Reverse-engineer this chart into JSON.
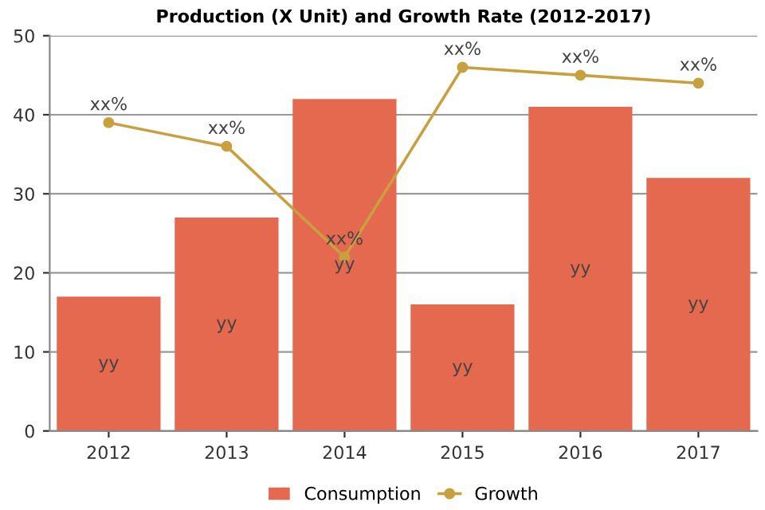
{
  "chart_data": {
    "type": "bar",
    "title": "Production (X Unit) and Growth Rate (2012-2017)",
    "categories": [
      "2012",
      "2013",
      "2014",
      "2015",
      "2016",
      "2017"
    ],
    "series": [
      {
        "name": "Consumption",
        "color": "#e5694f",
        "values": [
          17,
          27,
          42,
          16,
          41,
          32
        ],
        "value_labels": [
          "yy",
          "yy",
          "yy",
          "yy",
          "yy",
          "yy"
        ]
      },
      {
        "name": "Growth",
        "type": "line",
        "color": "#c9a03e",
        "values": [
          39,
          36,
          22,
          46,
          45,
          44
        ],
        "value_labels": [
          "xx%",
          "xx%",
          "xx%",
          "xx%",
          "xx%",
          "xx%"
        ]
      }
    ],
    "ylim": [
      0,
      50
    ],
    "yticks": [
      0,
      10,
      20,
      30,
      40,
      50
    ],
    "grid": "y",
    "legend": "bottom",
    "marker": "circle",
    "line_style": "solid"
  }
}
